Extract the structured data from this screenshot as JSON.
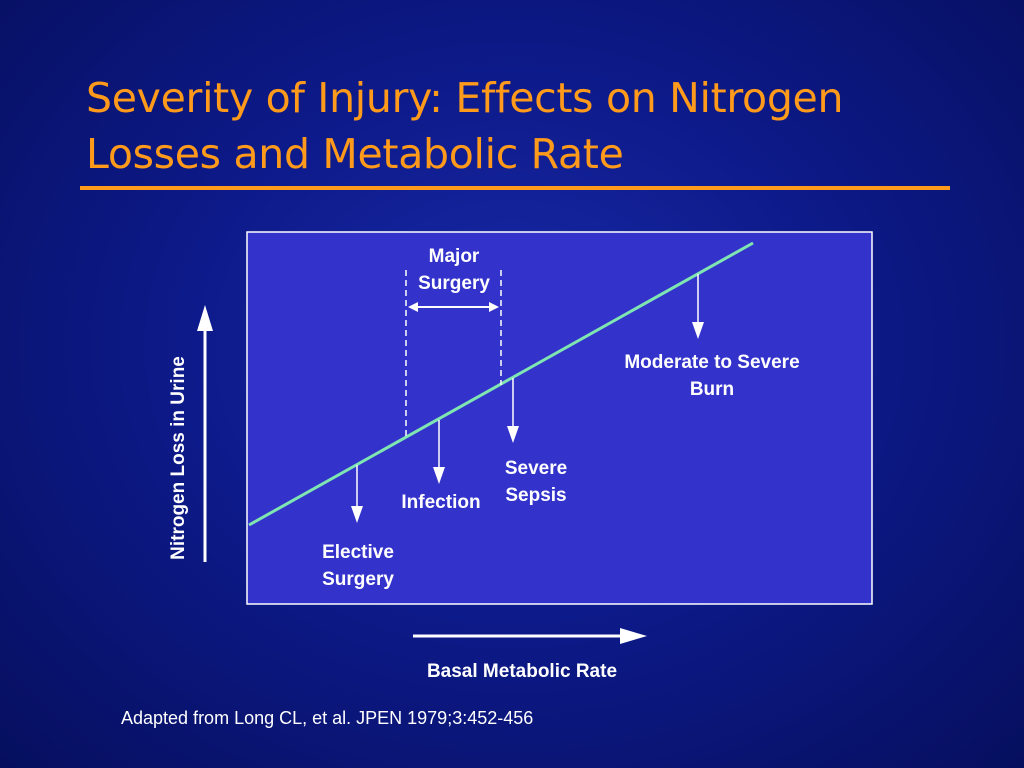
{
  "slide": {
    "title_line1": "Severity of Injury: Effects on Nitrogen",
    "title_line2": "Losses and Metabolic Rate",
    "footer": "Adapted from Long CL, et al. JPEN 1979;3:452-456"
  },
  "diagram": {
    "y_axis_label": "Nitrogen Loss in Urine",
    "x_axis_label": "Basal Metabolic Rate",
    "labels": {
      "major_surgery_line1": "Major",
      "major_surgery_line2": "Surgery",
      "burn_line1": "Moderate to Severe",
      "burn_line2": "Burn",
      "sepsis_line1": "Severe",
      "sepsis_line2": "Sepsis",
      "infection": "Infection",
      "elective_line1": "Elective",
      "elective_line2": "Surgery"
    },
    "colors": {
      "background": "#0d1a8a",
      "plot_area": "#3333cc",
      "trend_line": "#7fe6b2",
      "title": "#ff9a1a",
      "text": "#ffffff"
    }
  }
}
